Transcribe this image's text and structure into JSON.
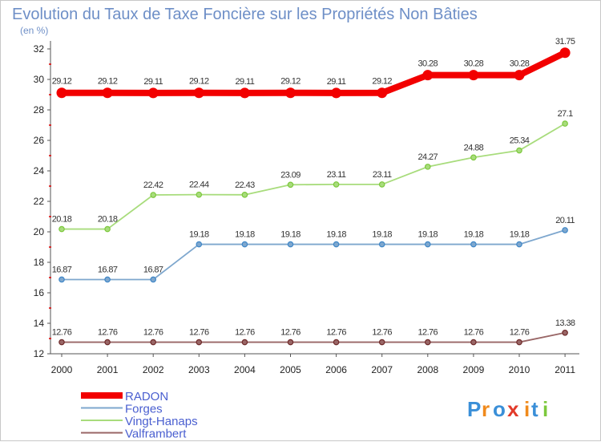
{
  "chart_data": {
    "type": "line",
    "title": "Evolution du Taux de Taxe Foncière sur les Propriétés Non Bâties",
    "subtitle": "(en %)",
    "x": [
      "2000",
      "2001",
      "2002",
      "2003",
      "2004",
      "2005",
      "2006",
      "2007",
      "2008",
      "2009",
      "2010",
      "2011"
    ],
    "yticks": [
      "12",
      "14",
      "16",
      "18",
      "20",
      "22",
      "24",
      "26",
      "28",
      "30",
      "32"
    ],
    "ylim": [
      12,
      32
    ],
    "grid": false,
    "series": [
      {
        "name": "RADON",
        "color": "#f20000",
        "values": [
          29.12,
          29.12,
          29.11,
          29.12,
          29.11,
          29.12,
          29.11,
          29.12,
          30.28,
          30.28,
          30.28,
          31.75
        ],
        "labels": [
          "29.12",
          "29.12",
          "29.11",
          "29.12",
          "29.11",
          "29.12",
          "29.11",
          "29.12",
          "30.28",
          "30.28",
          "30.28",
          "31.75"
        ]
      },
      {
        "name": "Forges",
        "color": "#7ea7ce",
        "marker_color": "#3f87c8",
        "values": [
          16.87,
          16.87,
          16.87,
          19.18,
          19.18,
          19.18,
          19.18,
          19.18,
          19.18,
          19.18,
          19.18,
          20.11
        ],
        "labels": [
          "16.87",
          "16.87",
          "16.87",
          "19.18",
          "19.18",
          "19.18",
          "19.18",
          "19.18",
          "19.18",
          "19.18",
          "19.18",
          "20.11"
        ]
      },
      {
        "name": "Vingt-Hanaps",
        "color": "#a8dc7c",
        "marker_color": "#7cc83c",
        "values": [
          20.18,
          20.18,
          22.42,
          22.44,
          22.43,
          23.09,
          23.11,
          23.11,
          24.27,
          24.88,
          25.34,
          27.1
        ],
        "labels": [
          "20.18",
          "20.18",
          "22.42",
          "22.44",
          "22.43",
          "23.09",
          "23.11",
          "23.11",
          "24.27",
          "24.88",
          "25.34",
          "27.1"
        ]
      },
      {
        "name": "Valframbert",
        "color": "#996666",
        "marker_color": "#6e2a2a",
        "values": [
          12.76,
          12.76,
          12.76,
          12.76,
          12.76,
          12.76,
          12.76,
          12.76,
          12.76,
          12.76,
          12.76,
          13.38
        ],
        "labels": [
          "12.76",
          "12.76",
          "12.76",
          "12.76",
          "12.76",
          "12.76",
          "12.76",
          "12.76",
          "12.76",
          "12.76",
          "12.76",
          "13.38"
        ]
      }
    ],
    "legend": "bottom-left"
  },
  "logo": {
    "letters": [
      "P",
      "r",
      "o",
      "x",
      "i",
      "t",
      "i"
    ]
  }
}
